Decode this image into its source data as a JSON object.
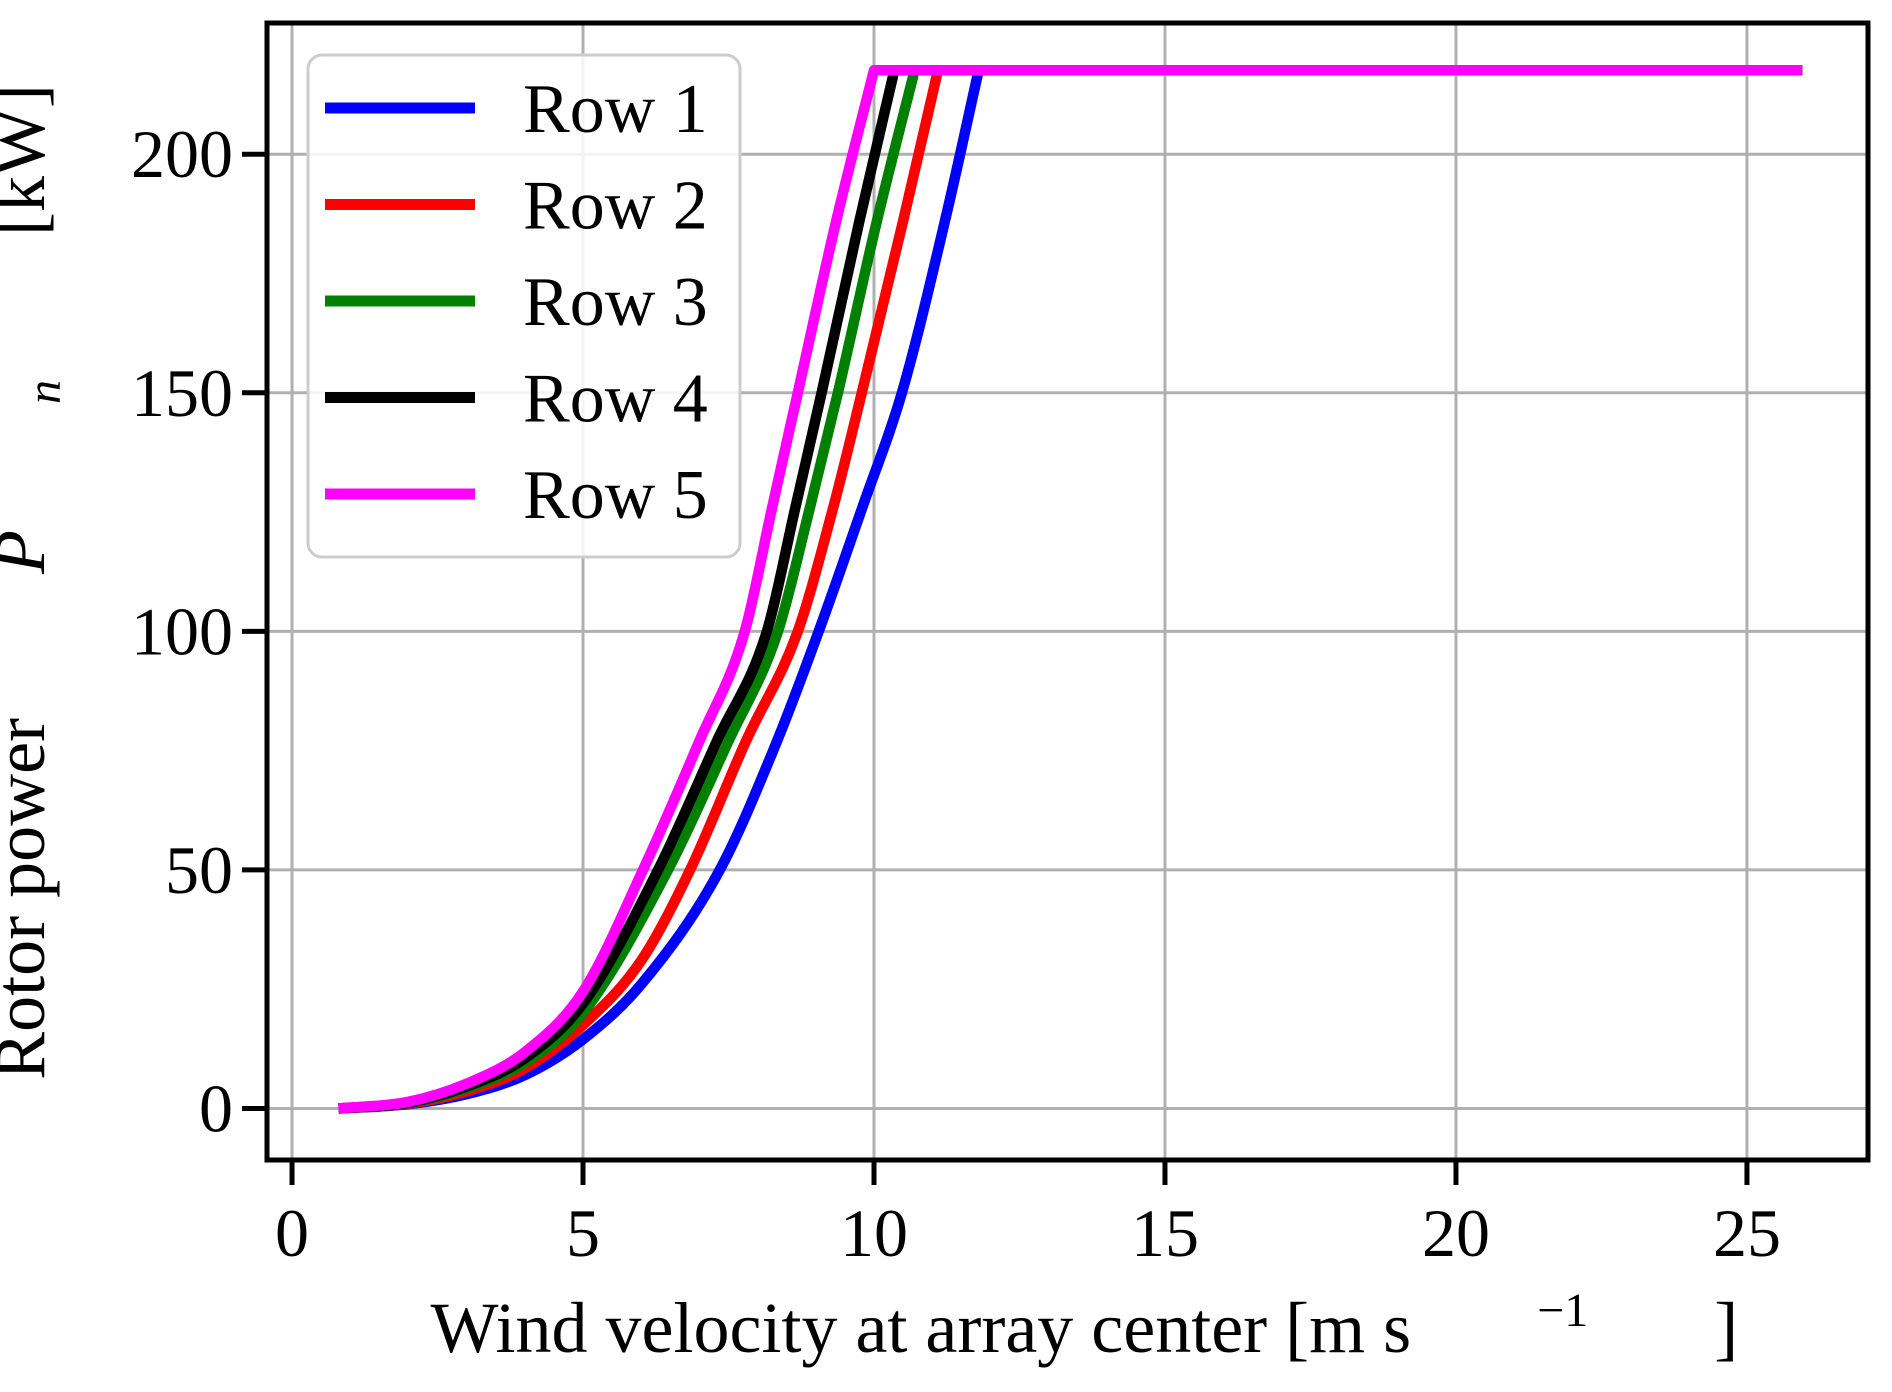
{
  "figure": {
    "background": "#ffffff"
  },
  "chart_data": {
    "type": "line",
    "title": "",
    "xlabel_parts": {
      "main": "Wind velocity at array center [m s",
      "sup": "−1",
      "close": "]"
    },
    "ylabel_parts": {
      "pre": "Rotor power ",
      "var": "P",
      "sub": "n",
      "post": " [kW]"
    },
    "xlim": [
      -0.43,
      27.08
    ],
    "ylim": [
      -10.8,
      227.5
    ],
    "x_ticks": [
      0,
      5,
      10,
      15,
      20,
      25
    ],
    "x_tick_labels": [
      "0",
      "5",
      "10",
      "15",
      "20",
      "25"
    ],
    "y_ticks": [
      0,
      50,
      100,
      150,
      200
    ],
    "y_tick_labels": [
      "0",
      "50",
      "100",
      "150",
      "200"
    ],
    "grid": true,
    "grid_color": "#b0b0b0",
    "axes_color": "#000000",
    "rated_power_kw": 217.6,
    "cut_in_velocity": 0.8,
    "curve_end_velocity": 25.95,
    "legend": {
      "position": "upper left",
      "border_color": "#cccccc",
      "entries": [
        {
          "label": "Row 1",
          "color": "#0000ff"
        },
        {
          "label": "Row 2",
          "color": "#ff0000"
        },
        {
          "label": "Row 3",
          "color": "#008000"
        },
        {
          "label": "Row 4",
          "color": "#000000"
        },
        {
          "label": "Row 5",
          "color": "#ff00ff"
        }
      ]
    },
    "series": [
      {
        "name": "Row 1",
        "color": "#0000ff",
        "rated_at_velocity": 11.8,
        "points": [
          [
            0.8,
            0
          ],
          [
            2,
            0.9
          ],
          [
            3,
            3.0
          ],
          [
            4,
            7.0
          ],
          [
            5,
            14.5
          ],
          [
            6,
            26
          ],
          [
            7.35,
            50
          ],
          [
            8.3,
            76
          ],
          [
            9.05,
            100
          ],
          [
            9.8,
            126
          ],
          [
            10.48,
            150
          ],
          [
            11.2,
            185
          ],
          [
            11.8,
            217.6
          ]
        ]
      },
      {
        "name": "Row 2",
        "color": "#ff0000",
        "rated_at_velocity": 11.1,
        "points": [
          [
            0.8,
            0
          ],
          [
            2,
            1.0
          ],
          [
            3,
            3.6
          ],
          [
            4,
            8.4
          ],
          [
            5,
            17.5
          ],
          [
            6,
            31
          ],
          [
            6.84,
            50
          ],
          [
            7.8,
            77
          ],
          [
            8.69,
            100
          ],
          [
            9.3,
            126
          ],
          [
            9.79,
            150
          ],
          [
            10.5,
            186
          ],
          [
            11.1,
            217.6
          ]
        ]
      },
      {
        "name": "Row 3",
        "color": "#008000",
        "rated_at_velocity": 10.7,
        "points": [
          [
            0.8,
            0
          ],
          [
            2,
            1.1
          ],
          [
            3,
            4.2
          ],
          [
            4,
            9.6
          ],
          [
            5,
            20
          ],
          [
            6.46,
            50
          ],
          [
            7.5,
            77
          ],
          [
            8.35,
            100
          ],
          [
            8.9,
            126
          ],
          [
            9.38,
            150
          ],
          [
            10.05,
            186
          ],
          [
            10.7,
            217.6
          ]
        ]
      },
      {
        "name": "Row 4",
        "color": "#000000",
        "rated_at_velocity": 10.35,
        "points": [
          [
            0.8,
            0
          ],
          [
            2,
            1.2
          ],
          [
            3,
            4.6
          ],
          [
            4,
            10.5
          ],
          [
            5,
            22
          ],
          [
            6.29,
            50
          ],
          [
            7.3,
            77
          ],
          [
            8.16,
            100
          ],
          [
            8.65,
            126
          ],
          [
            9.1,
            150
          ],
          [
            9.75,
            186
          ],
          [
            10.35,
            217.6
          ]
        ]
      },
      {
        "name": "Row 5",
        "color": "#ff00ff",
        "rated_at_velocity": 10.0,
        "points": [
          [
            0.8,
            0
          ],
          [
            2,
            1.4
          ],
          [
            3,
            5.2
          ],
          [
            4,
            11.8
          ],
          [
            5,
            24.5
          ],
          [
            6.03,
            50
          ],
          [
            7.0,
            77
          ],
          [
            7.78,
            100
          ],
          [
            8.25,
            126
          ],
          [
            8.69,
            150
          ],
          [
            9.35,
            186
          ],
          [
            10.0,
            217.6
          ]
        ]
      }
    ]
  }
}
